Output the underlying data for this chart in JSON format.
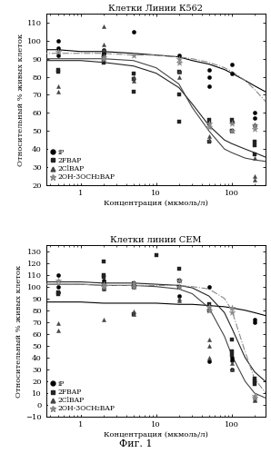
{
  "title1": "Клетки Линии К562",
  "title2": "Клетки линии СЕМ",
  "xlabel": "Концентрация (мкмоль/л)",
  "ylabel": "Относительный % живых клеток",
  "fig_label": "Фиг. 1",
  "plot1": {
    "ylim": [
      20,
      115
    ],
    "yticks": [
      20,
      30,
      40,
      50,
      60,
      70,
      80,
      90,
      100,
      110
    ],
    "scatter": {
      "iP": {
        "x": [
          0.5,
          0.5,
          0.5,
          2,
          2,
          2,
          5,
          20,
          20,
          50,
          50,
          50,
          100,
          100,
          100,
          200,
          200,
          200
        ],
        "y": [
          100,
          96,
          92,
          95,
          94,
          93,
          105,
          92,
          83,
          84,
          80,
          75,
          87,
          82,
          55,
          60,
          57,
          53
        ]
      },
      "2FBAP": {
        "x": [
          0.5,
          0.5,
          2,
          2,
          2,
          5,
          5,
          5,
          20,
          20,
          20,
          50,
          50,
          50,
          100,
          100,
          200,
          200,
          200
        ],
        "y": [
          84,
          83,
          90,
          92,
          88,
          82,
          79,
          72,
          83,
          70,
          55,
          56,
          54,
          44,
          56,
          50,
          44,
          42,
          37
        ]
      },
      "2ClBAP": {
        "x": [
          0.5,
          0.5,
          2,
          2,
          2,
          5,
          5,
          20,
          20,
          50,
          50,
          100,
          100,
          200,
          200,
          200
        ],
        "y": [
          75,
          72,
          108,
          98,
          95,
          80,
          78,
          83,
          80,
          47,
          45,
          55,
          50,
          35,
          25,
          23
        ]
      },
      "2OH3OCH2BAP": {
        "x": [
          0.5,
          2,
          2,
          5,
          20,
          20,
          50,
          50,
          100,
          100,
          200,
          200
        ],
        "y": [
          94,
          91,
          90,
          92,
          90,
          88,
          54,
          52,
          54,
          50,
          53,
          51
        ]
      }
    },
    "curves": {
      "iP": {
        "x": [
          0.3,
          0.5,
          1,
          2,
          5,
          10,
          20,
          30,
          50,
          80,
          100,
          150,
          200,
          300
        ],
        "y": [
          95,
          95,
          94,
          94,
          93,
          92,
          91,
          89,
          87,
          84,
          82,
          78,
          75,
          71
        ]
      },
      "2FBAP": {
        "x": [
          0.3,
          0.5,
          1,
          2,
          5,
          10,
          20,
          30,
          50,
          80,
          100,
          150,
          200,
          300
        ],
        "y": [
          89,
          89,
          89,
          88,
          86,
          82,
          74,
          65,
          53,
          45,
          43,
          40,
          38,
          35
        ]
      },
      "2ClBAP": {
        "x": [
          0.3,
          0.5,
          1,
          2,
          5,
          10,
          20,
          30,
          50,
          80,
          100,
          150,
          200,
          300
        ],
        "y": [
          90,
          90,
          90,
          90,
          89,
          85,
          76,
          63,
          50,
          40,
          38,
          35,
          34,
          33
        ]
      },
      "2OH3OCH2BAP": {
        "x": [
          0.3,
          0.5,
          1,
          2,
          5,
          10,
          20,
          30,
          50,
          80,
          100,
          150,
          200,
          300
        ],
        "y": [
          93,
          93,
          93,
          93,
          92,
          92,
          91,
          90,
          88,
          85,
          83,
          78,
          73,
          65
        ]
      }
    }
  },
  "plot2": {
    "ylim": [
      -10,
      135
    ],
    "yticks": [
      -10,
      0,
      10,
      20,
      30,
      40,
      50,
      60,
      70,
      80,
      90,
      100,
      110,
      120,
      130
    ],
    "scatter": {
      "iP": {
        "x": [
          0.5,
          0.5,
          0.5,
          2,
          2,
          2,
          5,
          5,
          20,
          20,
          50,
          50,
          100,
          100,
          100,
          200,
          200
        ],
        "y": [
          110,
          100,
          95,
          105,
          103,
          98,
          103,
          100,
          105,
          92,
          100,
          37,
          40,
          38,
          30,
          72,
          70
        ]
      },
      "2FBAP": {
        "x": [
          0.5,
          0.5,
          2,
          2,
          2,
          5,
          5,
          5,
          10,
          20,
          20,
          20,
          50,
          50,
          100,
          100,
          100,
          200,
          200,
          200
        ],
        "y": [
          95,
          94,
          121,
          110,
          108,
          103,
          100,
          77,
          127,
          115,
          105,
          100,
          85,
          80,
          55,
          45,
          42,
          22,
          20,
          18
        ]
      },
      "2ClBAP": {
        "x": [
          0.5,
          0.5,
          2,
          2,
          2,
          5,
          5,
          20,
          20,
          50,
          50,
          50,
          100,
          100,
          200,
          200,
          200
        ],
        "y": [
          69,
          63,
          100,
          98,
          72,
          79,
          77,
          90,
          88,
          55,
          50,
          40,
          35,
          30,
          7,
          5,
          4
        ]
      },
      "2OH3OCH2BAP": {
        "x": [
          0.5,
          2,
          2,
          5,
          5,
          20,
          20,
          50,
          50,
          100,
          100,
          200,
          200
        ],
        "y": [
          105,
          102,
          100,
          103,
          100,
          105,
          100,
          83,
          80,
          82,
          78,
          8,
          6
        ]
      }
    },
    "curves": {
      "iP": {
        "x": [
          0.3,
          0.5,
          1,
          2,
          5,
          10,
          20,
          30,
          50,
          80,
          100,
          150,
          200,
          300
        ],
        "y": [
          87,
          87,
          87,
          86,
          86,
          86,
          85,
          85,
          84,
          83,
          82,
          80,
          78,
          75
        ]
      },
      "2FBAP": {
        "x": [
          0.3,
          0.5,
          1,
          2,
          5,
          10,
          20,
          30,
          50,
          80,
          100,
          150,
          200,
          300
        ],
        "y": [
          104,
          104,
          104,
          103,
          103,
          102,
          101,
          99,
          92,
          78,
          65,
          40,
          28,
          18
        ]
      },
      "2ClBAP": {
        "x": [
          0.3,
          0.5,
          1,
          2,
          5,
          10,
          20,
          30,
          50,
          80,
          100,
          150,
          200,
          300
        ],
        "y": [
          102,
          102,
          102,
          101,
          101,
          100,
          98,
          94,
          82,
          58,
          42,
          20,
          10,
          5
        ]
      },
      "2OH3OCH2BAP": {
        "x": [
          0.3,
          0.5,
          1,
          2,
          5,
          10,
          20,
          30,
          50,
          80,
          100,
          150,
          200,
          300
        ],
        "y": [
          102,
          102,
          102,
          101,
          101,
          101,
          101,
          100,
          98,
          90,
          80,
          45,
          22,
          8
        ]
      }
    }
  },
  "colors": {
    "iP": "#000000",
    "2FBAP": "#222222",
    "2ClBAP": "#444444",
    "2OH3OCH2BAP": "#888888"
  },
  "markers": {
    "iP": "o",
    "2FBAP": "s",
    "2ClBAP": "^",
    "2OH3OCH2BAP": "*"
  },
  "line_styles": {
    "iP": "-",
    "2FBAP": "-",
    "2ClBAP": "-",
    "2OH3OCH2BAP": "-."
  },
  "legend_labels": {
    "iP": "iP",
    "2FBAP": "2FBAP",
    "2ClBAP": "2ClBAP",
    "2OH3OCH2BAP": "2OH-3OCH₂BAP"
  },
  "title_fontsize": 7,
  "label_fontsize": 6,
  "tick_fontsize": 6,
  "legend_fontsize": 5.5
}
